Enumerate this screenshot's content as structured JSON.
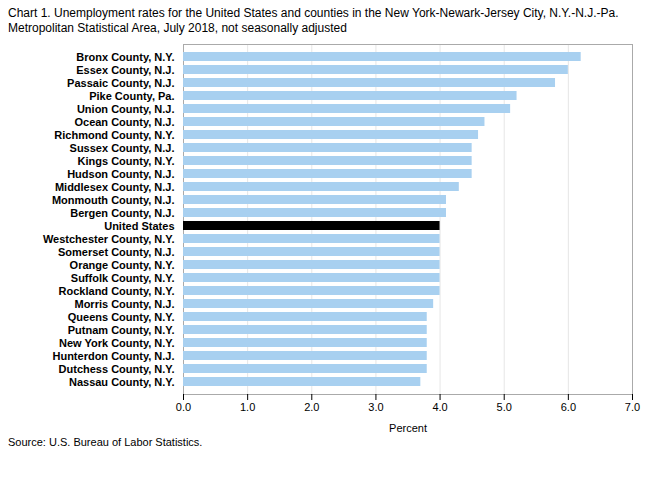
{
  "chart_data": {
    "type": "bar",
    "orientation": "horizontal",
    "title": "Chart 1. Unemployment rates for the United States and counties in the New York-Newark-Jersey City, N.Y.-N.J.-Pa.",
    "subtitle": "Metropolitan Statistical Area, July 2018, not seasonally adjusted",
    "caption": "Source: U.S. Bureau of Labor Statistics.",
    "xlabel": "Percent",
    "categories": [
      "Nassau County, N.Y.",
      "Dutchess County, N.Y.",
      "Hunterdon County, N.J.",
      "New York County, N.Y.",
      "Putnam County, N.Y.",
      "Queens County, N.Y.",
      "Morris County, N.J.",
      "Rockland County, N.Y.",
      "Suffolk County, N.Y.",
      "Orange County, N.Y.",
      "Somerset County, N.J.",
      "Westchester County, N.Y.",
      "United States",
      "Bergen County, N.J.",
      "Monmouth County, N.J.",
      "Middlesex County, N.J.",
      "Hudson County, N.J.",
      "Kings County, N.Y.",
      "Sussex County, N.J.",
      "Richmond County, N.Y.",
      "Ocean County, N.J.",
      "Union County, N.J.",
      "Pike County, Pa.",
      "Passaic County, N.J.",
      "Essex County, N.J.",
      "Bronx County, N.Y."
    ],
    "values": [
      3.7,
      3.8,
      3.8,
      3.8,
      3.8,
      3.8,
      3.9,
      4.0,
      4.0,
      4.0,
      4.0,
      4.0,
      4.0,
      4.1,
      4.1,
      4.3,
      4.5,
      4.5,
      4.5,
      4.6,
      4.7,
      5.1,
      5.2,
      5.8,
      6.0,
      6.2
    ],
    "colors": [
      "#a8d0f0",
      "#a8d0f0",
      "#a8d0f0",
      "#a8d0f0",
      "#a8d0f0",
      "#a8d0f0",
      "#a8d0f0",
      "#a8d0f0",
      "#a8d0f0",
      "#a8d0f0",
      "#a8d0f0",
      "#a8d0f0",
      "#000000",
      "#a8d0f0",
      "#a8d0f0",
      "#a8d0f0",
      "#a8d0f0",
      "#a8d0f0",
      "#a8d0f0",
      "#a8d0f0",
      "#a8d0f0",
      "#a8d0f0",
      "#a8d0f0",
      "#a8d0f0",
      "#a8d0f0",
      "#a8d0f0"
    ],
    "xlim": [
      0,
      7
    ],
    "xticks": [
      0,
      1,
      2,
      3,
      4,
      5,
      6,
      7
    ],
    "grid": true
  }
}
